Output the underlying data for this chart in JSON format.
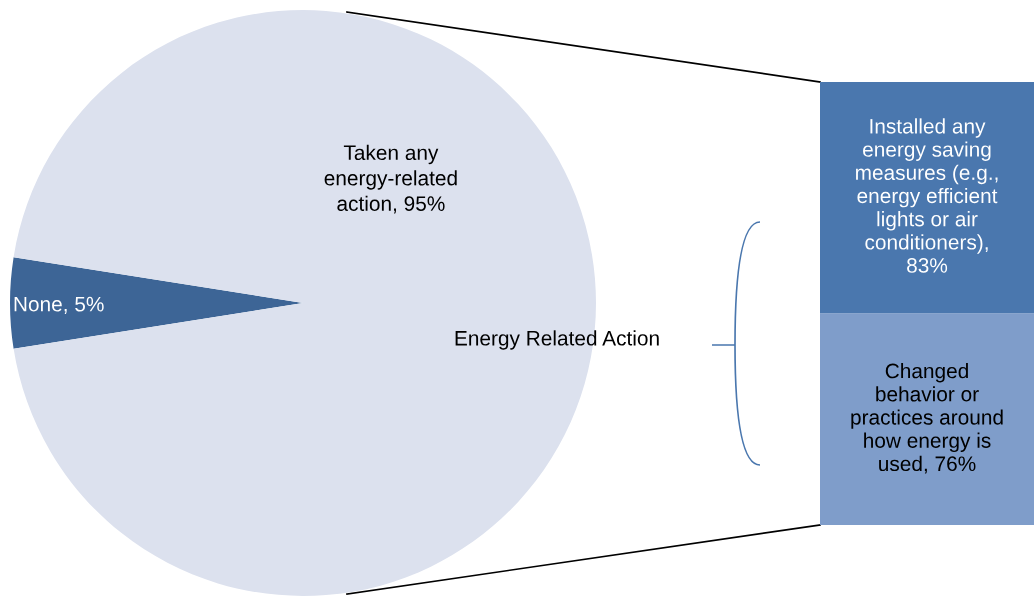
{
  "chart_data": [
    {
      "type": "pie",
      "categories": [
        "None",
        "Taken any energy-related action"
      ],
      "values": [
        5,
        95
      ],
      "colors": [
        "#3d6596",
        "#dce1ee"
      ],
      "value_labels": [
        "5%",
        "95%"
      ],
      "legend": false
    },
    {
      "type": "bar",
      "stacked": true,
      "categories": [
        null
      ],
      "legend": false,
      "annotations": [
        "Energy Related Action"
      ],
      "series": [
        {
          "color": "#7f9dca",
          "values": [
            76
          ],
          "value_labels": [
            "Changed behavior or practices around how energy is used, 76%"
          ]
        },
        {
          "color": "#4a77ae",
          "values": [
            83
          ],
          "value_labels": [
            "Installed any energy saving measures (e.g., energy efficient lights or air conditioners), 83%"
          ]
        }
      ]
    }
  ]
}
